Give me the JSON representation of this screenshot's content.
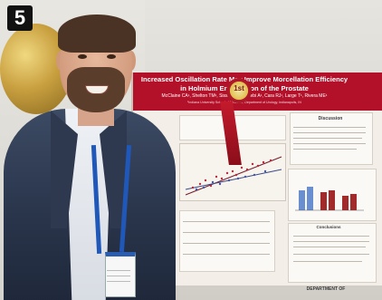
{
  "photo_label": "5",
  "poster": {
    "title": "Increased Oscillation Rate May Improve Morcellation Efficiency in Holmium Enucleation of the Prostate",
    "authors": "McClaine CA¹, Shelton TM¹, Sisson AD¹, Aldebi A¹, Cara RJ¹, Large T¹, Rivera ME¹",
    "affiliation": "¹Indiana University School of Medicine, Department of Urology, Indianapolis, IN",
    "ribbon": "1st",
    "sections": {
      "discussion": "Discussion",
      "conclusions": "Conclusions",
      "department": "DEPARTMENT OF"
    },
    "colors": {
      "header": "#b3102a",
      "bar_blue": "#6a8fd0",
      "bar_red": "#a32a2a"
    }
  }
}
